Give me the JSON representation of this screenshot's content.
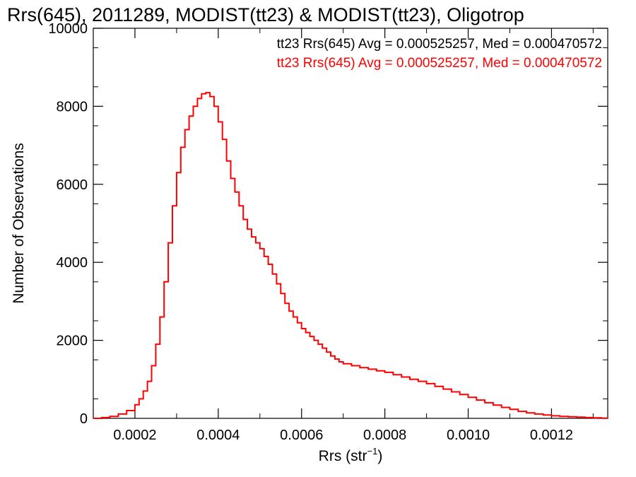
{
  "chart_data": {
    "type": "line",
    "title": "Rrs(645), 2011289, MODIST(tt23) & MODIST(tt23), Oligotrop",
    "xlabel_main": "Rrs (str",
    "xlabel_sup": "−1",
    "xlabel_close": ")",
    "ylabel": "Number of Observations",
    "xlim": [
      0.0001,
      0.001335
    ],
    "ylim": [
      0,
      10000
    ],
    "x_ticks": [
      0.0002,
      0.0004,
      0.0006,
      0.0008,
      0.001,
      0.0012
    ],
    "x_tick_labels": [
      "0.0002",
      "0.0004",
      "0.0006",
      "0.0008",
      "0.0010",
      "0.0012"
    ],
    "y_ticks": [
      0,
      2000,
      4000,
      6000,
      8000,
      10000
    ],
    "y_tick_labels": [
      "0",
      "2000",
      "4000",
      "6000",
      "8000",
      "10000"
    ],
    "grid": false,
    "legend_placement": "top-right",
    "annotations": [
      {
        "text": "tt23 Rrs(645) Avg = 0.000525257, Med = 0.000470572",
        "color": "#000000"
      },
      {
        "text": "tt23 Rrs(645) Avg = 0.000525257, Med = 0.000470572",
        "color": "#ff0000"
      }
    ],
    "series": [
      {
        "color": "#ff0000",
        "step": true,
        "x": [
          0.0001,
          0.00012,
          0.00014,
          0.00016,
          0.00018,
          0.0002,
          0.00021,
          0.00022,
          0.00023,
          0.00024,
          0.00025,
          0.00026,
          0.00027,
          0.00028,
          0.00029,
          0.0003,
          0.00031,
          0.00032,
          0.00033,
          0.00034,
          0.00035,
          0.00036,
          0.00037,
          0.00038,
          0.00039,
          0.0004,
          0.00041,
          0.00042,
          0.00043,
          0.00044,
          0.00045,
          0.00046,
          0.00047,
          0.00048,
          0.00049,
          0.0005,
          0.00051,
          0.00052,
          0.00053,
          0.00054,
          0.00055,
          0.00056,
          0.00057,
          0.00058,
          0.00059,
          0.0006,
          0.00061,
          0.00062,
          0.00063,
          0.00064,
          0.00065,
          0.00066,
          0.00067,
          0.00068,
          0.00069,
          0.0007,
          0.00072,
          0.00074,
          0.00076,
          0.00078,
          0.0008,
          0.00082,
          0.00084,
          0.00086,
          0.00088,
          0.0009,
          0.00092,
          0.00094,
          0.00096,
          0.00098,
          0.001,
          0.00102,
          0.00104,
          0.00106,
          0.00108,
          0.0011,
          0.00112,
          0.00114,
          0.00116,
          0.00118,
          0.0012,
          0.00122,
          0.00124,
          0.00126,
          0.00128,
          0.0013,
          0.00132,
          0.001335
        ],
        "y": [
          0,
          20,
          50,
          110,
          200,
          350,
          500,
          700,
          950,
          1350,
          1900,
          2600,
          3500,
          4500,
          5450,
          6300,
          6950,
          7400,
          7750,
          8000,
          8200,
          8320,
          8350,
          8250,
          8000,
          7600,
          7150,
          6600,
          6150,
          5800,
          5450,
          5100,
          4850,
          4650,
          4500,
          4350,
          4150,
          3950,
          3700,
          3450,
          3200,
          2950,
          2750,
          2600,
          2450,
          2300,
          2200,
          2100,
          2000,
          1900,
          1800,
          1700,
          1600,
          1520,
          1450,
          1400,
          1350,
          1300,
          1260,
          1220,
          1180,
          1120,
          1060,
          1000,
          950,
          890,
          820,
          750,
          680,
          610,
          540,
          470,
          400,
          340,
          280,
          230,
          180,
          140,
          110,
          85,
          65,
          50,
          40,
          30,
          20,
          12,
          6,
          3
        ]
      }
    ]
  }
}
